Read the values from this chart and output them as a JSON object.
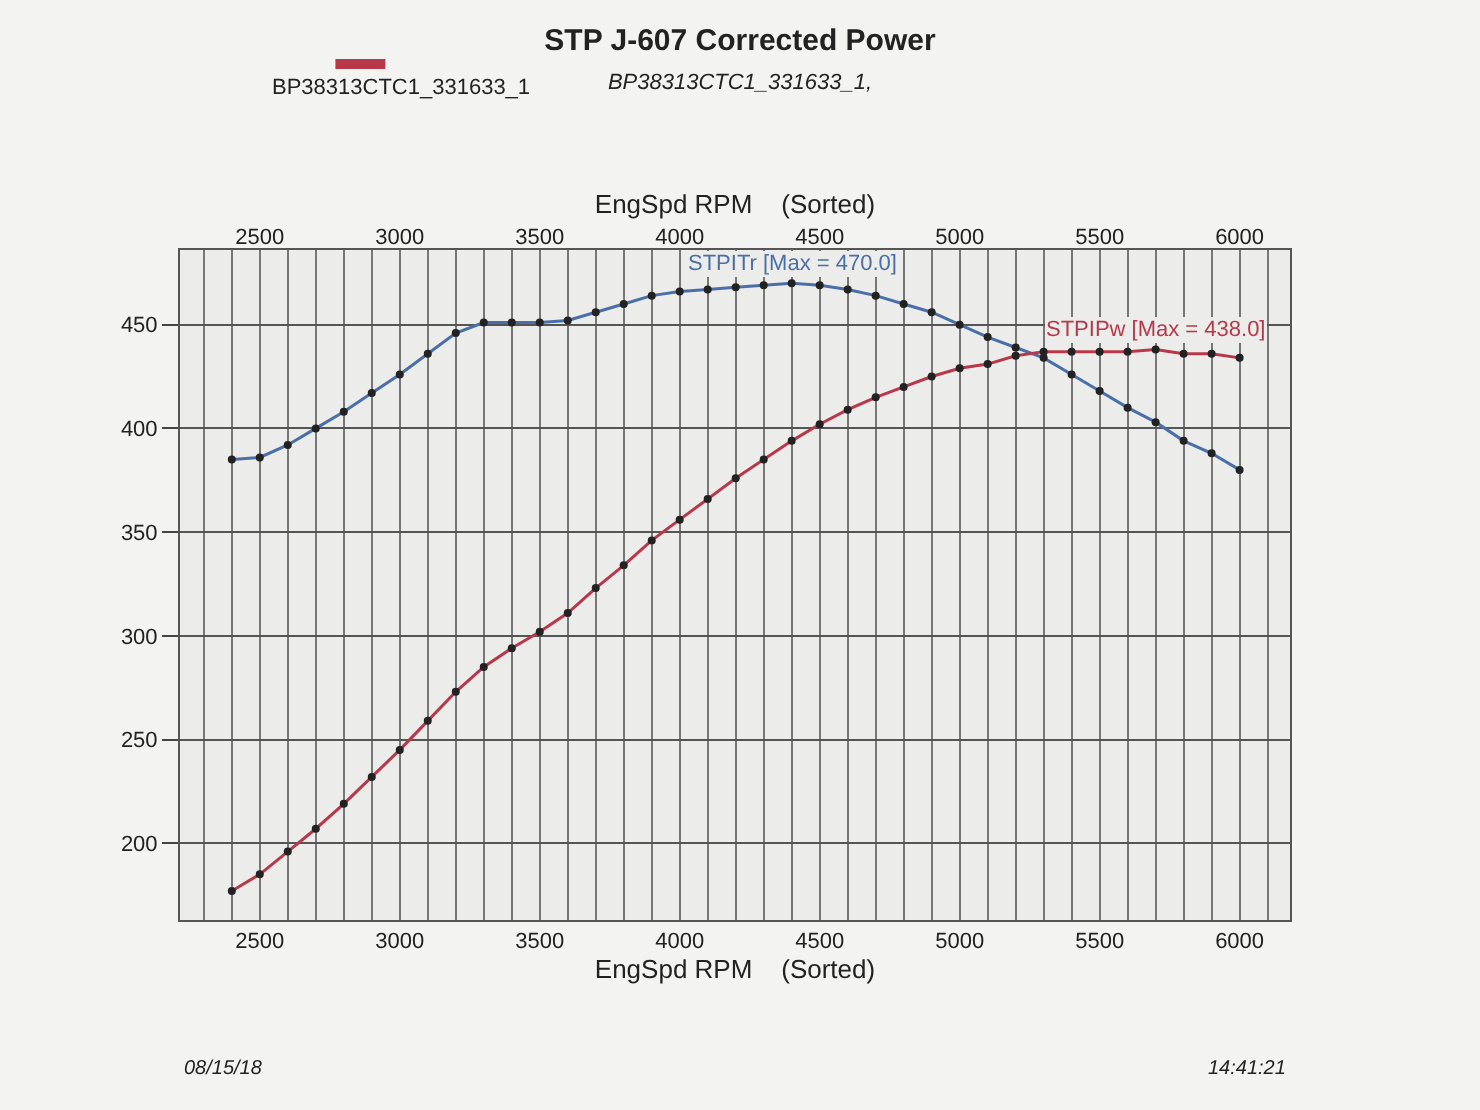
{
  "chart_data": {
    "type": "line",
    "title": "STP J-607 Corrected Power",
    "subtitle": "BP38313CTC1_331633_1,",
    "xlabel": "EngSpd RPM    (Sorted)",
    "x2label": "EngSpd RPM    (Sorted)",
    "x": [
      2400,
      2500,
      2600,
      2700,
      2800,
      2900,
      3000,
      3100,
      3200,
      3300,
      3400,
      3500,
      3600,
      3700,
      3800,
      3900,
      4000,
      4100,
      4200,
      4300,
      4400,
      4500,
      4600,
      4700,
      4800,
      4900,
      5000,
      5100,
      5200,
      5300,
      5400,
      5500,
      5600,
      5700,
      5800,
      5900,
      6000
    ],
    "series": [
      {
        "name": "STPITr [Max = 470.0]",
        "color": "#4a6fa8",
        "values": [
          385,
          386,
          392,
          400,
          408,
          417,
          426,
          436,
          446,
          451,
          451,
          451,
          452,
          456,
          460,
          464,
          466,
          467,
          468,
          469,
          470,
          469,
          467,
          464,
          460,
          456,
          450,
          444,
          439,
          434,
          426,
          418,
          410,
          403,
          394,
          388,
          380
        ]
      },
      {
        "name": "STPIPw [Max = 438.0]",
        "color": "#b8384a",
        "values": [
          177,
          185,
          196,
          207,
          219,
          232,
          245,
          259,
          273,
          285,
          294,
          302,
          311,
          323,
          334,
          346,
          356,
          366,
          376,
          385,
          394,
          402,
          409,
          415,
          420,
          425,
          429,
          431,
          435,
          437,
          437,
          437,
          437,
          438,
          436,
          436,
          434
        ]
      }
    ],
    "xlim": [
      2215,
      6180
    ],
    "xticks": [
      {
        "value": 2300,
        "label": null
      },
      {
        "value": 2400,
        "label": null
      },
      2500,
      {
        "value": 2600,
        "label": null
      },
      {
        "value": 2700,
        "label": null
      },
      {
        "value": 2800,
        "label": null
      },
      {
        "value": 2900,
        "label": null
      },
      3000,
      {
        "value": 3100,
        "label": null
      },
      {
        "value": 3200,
        "label": null
      },
      {
        "value": 3300,
        "label": null
      },
      {
        "value": 3400,
        "label": null
      },
      3500,
      {
        "value": 3600,
        "label": null
      },
      {
        "value": 3700,
        "label": null
      },
      {
        "value": 3800,
        "label": null
      },
      {
        "value": 3900,
        "label": null
      },
      4000,
      {
        "value": 4100,
        "label": null
      },
      {
        "value": 4200,
        "label": null
      },
      {
        "value": 4300,
        "label": null
      },
      {
        "value": 4400,
        "label": null
      },
      4500,
      {
        "value": 4600,
        "label": null
      },
      {
        "value": 4700,
        "label": null
      },
      {
        "value": 4800,
        "label": null
      },
      {
        "value": 4900,
        "label": null
      },
      5000,
      {
        "value": 5100,
        "label": null
      },
      {
        "value": 5200,
        "label": null
      },
      {
        "value": 5300,
        "label": null
      },
      {
        "value": 5400,
        "label": null
      },
      5500,
      {
        "value": 5600,
        "label": null
      },
      {
        "value": 5700,
        "label": null
      },
      {
        "value": 5800,
        "label": null
      },
      {
        "value": 5900,
        "label": null
      },
      6000,
      {
        "value": 6100,
        "label": null
      }
    ],
    "x2lim": [
      2215,
      6180
    ],
    "x2ticks": [
      2500,
      3000,
      3500,
      4000,
      4500,
      5000,
      5500,
      6000
    ],
    "ylim": [
      163,
      486
    ],
    "yticks": [
      200,
      250,
      300,
      350,
      400,
      450
    ],
    "grid": true,
    "marker": "circle",
    "line_style": "solid",
    "annotations": [
      "08/15/18",
      "14:41:21",
      "BP38313CTC1_331633_1"
    ]
  }
}
